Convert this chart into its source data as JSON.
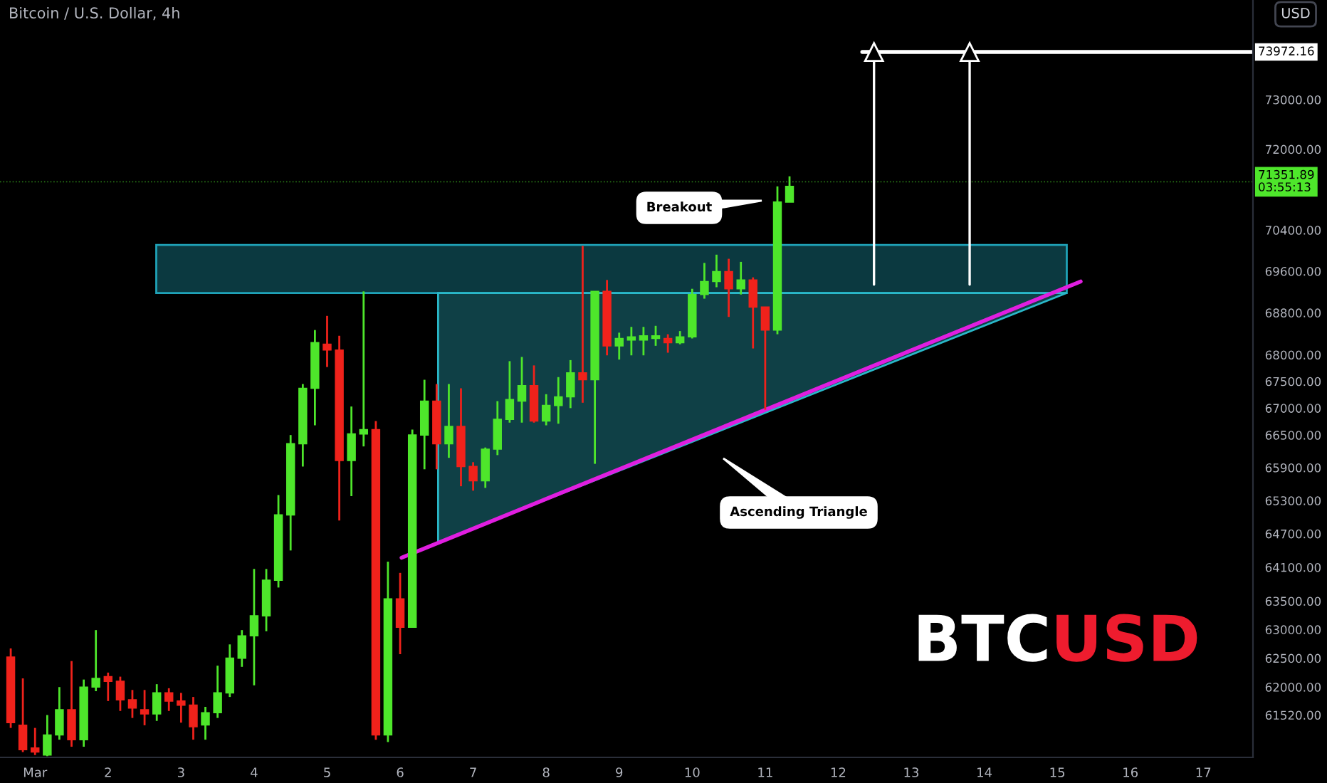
{
  "chart_data": {
    "type": "candlestick",
    "title": "Bitcoin / U.S. Dollar, 4h",
    "log": true,
    "x": [
      0.667,
      0.833,
      1,
      1.167,
      1.333,
      1.5,
      1.667,
      1.833,
      2,
      2.167,
      2.333,
      2.5,
      2.667,
      2.833,
      3,
      3.167,
      3.333,
      3.5,
      3.667,
      3.833,
      4,
      4.167,
      4.333,
      4.5,
      4.667,
      4.833,
      5,
      5.167,
      5.333,
      5.5,
      5.667,
      5.833,
      6,
      6.167,
      6.333,
      6.5,
      6.667,
      6.833,
      7,
      7.167,
      7.333,
      7.5,
      7.667,
      7.833,
      8,
      8.167,
      8.333,
      8.5,
      8.667,
      8.833,
      9,
      9.167,
      9.333,
      9.5,
      9.667,
      9.833,
      10,
      10.167,
      10.333,
      10.5,
      10.667,
      10.833,
      11,
      11.167,
      11.333
    ],
    "ohlc": [
      [
        62520,
        62670,
        61300,
        61390
      ],
      [
        61345,
        62150,
        60890,
        60930
      ],
      [
        60960,
        61300,
        60840,
        60890
      ],
      [
        60840,
        61520,
        60820,
        61180
      ],
      [
        61180,
        62000,
        61100,
        61610
      ],
      [
        61610,
        62450,
        60980,
        61100
      ],
      [
        61100,
        62130,
        60980,
        62000
      ],
      [
        62000,
        62990,
        61930,
        62150
      ],
      [
        62180,
        62250,
        61760,
        62100
      ],
      [
        62100,
        62180,
        61590,
        61780
      ],
      [
        61780,
        61950,
        61470,
        61640
      ],
      [
        61610,
        61950,
        61345,
        61540
      ],
      [
        61540,
        62050,
        61420,
        61900
      ],
      [
        61900,
        61980,
        61590,
        61760
      ],
      [
        61760,
        61900,
        61390,
        61690
      ],
      [
        61690,
        61830,
        61100,
        61320
      ],
      [
        61350,
        61660,
        61100,
        61560
      ],
      [
        61560,
        62370,
        61470,
        61900
      ],
      [
        61900,
        62740,
        61830,
        62500
      ],
      [
        62500,
        62990,
        62350,
        62890
      ],
      [
        62890,
        64070,
        62030,
        63240
      ],
      [
        63240,
        64070,
        62970,
        63870
      ],
      [
        63870,
        65400,
        63740,
        65040
      ],
      [
        65040,
        66500,
        64400,
        66340
      ],
      [
        66340,
        67450,
        65920,
        67370
      ],
      [
        67370,
        68470,
        66680,
        68230
      ],
      [
        68200,
        68740,
        67770,
        68090
      ],
      [
        68090,
        68360,
        64940,
        66030
      ],
      [
        66030,
        67030,
        65380,
        66520
      ],
      [
        66520,
        69210,
        66290,
        66600
      ],
      [
        66600,
        66760,
        61100,
        61180
      ],
      [
        61180,
        64200,
        61060,
        63540
      ],
      [
        63540,
        64000,
        62570,
        63040
      ],
      [
        63040,
        66600,
        63040,
        66500
      ],
      [
        66500,
        67530,
        65870,
        67130
      ],
      [
        67130,
        67450,
        65870,
        66340
      ],
      [
        66340,
        67450,
        66080,
        66660
      ],
      [
        66660,
        67370,
        65560,
        65920
      ],
      [
        65920,
        66000,
        65480,
        65660
      ],
      [
        65660,
        66270,
        65530,
        66240
      ],
      [
        66240,
        67130,
        66130,
        66790
      ],
      [
        66790,
        67880,
        66730,
        67160
      ],
      [
        67130,
        67960,
        66730,
        67420
      ],
      [
        67420,
        67800,
        66730,
        66760
      ],
      [
        66760,
        67260,
        66680,
        67050
      ],
      [
        67050,
        67580,
        66710,
        67210
      ],
      [
        67210,
        67900,
        67000,
        67660
      ],
      [
        67660,
        70090,
        67100,
        67530
      ],
      [
        67530,
        69210,
        65970,
        69210
      ],
      [
        69210,
        69430,
        67990,
        68170
      ],
      [
        68170,
        68420,
        67910,
        68310
      ],
      [
        68280,
        68530,
        67990,
        68340
      ],
      [
        68280,
        68530,
        67990,
        68360
      ],
      [
        68310,
        68550,
        68170,
        68360
      ],
      [
        68310,
        68390,
        68040,
        68230
      ],
      [
        68230,
        68450,
        68200,
        68340
      ],
      [
        68340,
        69260,
        68310,
        69150
      ],
      [
        69150,
        69760,
        69070,
        69400
      ],
      [
        69400,
        69920,
        69290,
        69590
      ],
      [
        69590,
        69840,
        68720,
        69260
      ],
      [
        69260,
        69780,
        69150,
        69430
      ],
      [
        69430,
        69480,
        68120,
        68910
      ],
      [
        68910,
        68910,
        66970,
        68470
      ],
      [
        68470,
        71260,
        68390,
        70950
      ],
      [
        70950,
        71460,
        70950,
        71260
      ]
    ],
    "colors": [
      "#f0221b",
      "#f0221b",
      "#f0221b",
      "#4ee62b",
      "#4ee62b",
      "#f0221b",
      "#4ee62b",
      "#4ee62b",
      "#f0221b",
      "#f0221b",
      "#f0221b",
      "#f0221b",
      "#4ee62b",
      "#f0221b",
      "#f0221b",
      "#f0221b",
      "#4ee62b",
      "#4ee62b",
      "#4ee62b",
      "#4ee62b",
      "#4ee62b",
      "#4ee62b",
      "#4ee62b",
      "#4ee62b",
      "#4ee62b",
      "#4ee62b",
      "#f0221b",
      "#f0221b",
      "#4ee62b",
      "#4ee62b",
      "#f0221b",
      "#4ee62b",
      "#f0221b",
      "#4ee62b",
      "#4ee62b",
      "#f0221b",
      "#4ee62b",
      "#f0221b",
      "#f0221b",
      "#4ee62b",
      "#4ee62b",
      "#4ee62b",
      "#4ee62b",
      "#f0221b",
      "#4ee62b",
      "#4ee62b",
      "#4ee62b",
      "#f0221b",
      "#4ee62b",
      "#f0221b",
      "#4ee62b",
      "#4ee62b",
      "#4ee62b",
      "#4ee62b",
      "#f0221b",
      "#4ee62b",
      "#4ee62b",
      "#4ee62b",
      "#4ee62b",
      "#f0221b",
      "#4ee62b",
      "#f0221b",
      "#f0221b",
      "#4ee62b",
      "#4ee62b"
    ],
    "series": [
      {
        "type": "area",
        "x": [
          2.66,
          15.13,
          15.13,
          2.66
        ],
        "values": [
          70110,
          70110,
          69180,
          69180
        ],
        "color": "#1fa3b8"
      },
      {
        "type": "area",
        "x": [
          6.52,
          15.13,
          6.52
        ],
        "values": [
          69180,
          69180,
          64540
        ],
        "color": "#2ab8c9"
      },
      {
        "type": "line",
        "x": [
          6.02,
          15.32
        ],
        "values": [
          64270,
          69400
        ],
        "color": "#e01ee0"
      },
      {
        "type": "line",
        "name": "73972.16",
        "x": [
          12.33,
          17.68
        ],
        "values": [
          73972.16,
          73972.16
        ],
        "color": "#ffffff"
      },
      {
        "type": "line",
        "x": [
          12.49,
          12.49
        ],
        "values": [
          69340,
          73972.16
        ],
        "color": "#ffffff",
        "marker": "triangle"
      },
      {
        "type": "line",
        "x": [
          13.8,
          13.8
        ],
        "values": [
          69340,
          73972.16
        ],
        "color": "#ffffff",
        "marker": "triangle"
      }
    ],
    "ref_lines": [
      {
        "axis": "y",
        "value": 71351.89,
        "label": "71351.89\n03:55:13",
        "color": "#4ee62b",
        "line_style": "dotted"
      }
    ],
    "annotations": [
      "BTC",
      "USD",
      "USD",
      "Breakout",
      "Ascending Triangle"
    ],
    "xlim": [
      0.52,
      17.68
    ],
    "xticks": [
      {
        "value": 1,
        "label": "Mar"
      },
      2,
      3,
      4,
      5,
      6,
      7,
      8,
      9,
      10,
      11,
      12,
      13,
      14,
      15,
      16,
      17
    ],
    "ylim": [
      60800,
      75050
    ],
    "yticks": [
      {
        "value": 73000,
        "label": "73000.00"
      },
      {
        "value": 72000,
        "label": "72000.00"
      },
      {
        "value": 70400,
        "label": "70400.00"
      },
      {
        "value": 69600,
        "label": "69600.00"
      },
      {
        "value": 68800,
        "label": "68800.00"
      },
      {
        "value": 68000,
        "label": "68000.00"
      },
      {
        "value": 67500,
        "label": "67500.00"
      },
      {
        "value": 67000,
        "label": "67000.00"
      },
      {
        "value": 66500,
        "label": "66500.00"
      },
      {
        "value": 65900,
        "label": "65900.00"
      },
      {
        "value": 65300,
        "label": "65300.00"
      },
      {
        "value": 64700,
        "label": "64700.00"
      },
      {
        "value": 64100,
        "label": "64100.00"
      },
      {
        "value": 63500,
        "label": "63500.00"
      },
      {
        "value": 63000,
        "label": "63000.00"
      },
      {
        "value": 62500,
        "label": "62500.00"
      },
      {
        "value": 62000,
        "label": "62000.00"
      },
      {
        "value": 61520,
        "label": "61520.00"
      }
    ]
  }
}
